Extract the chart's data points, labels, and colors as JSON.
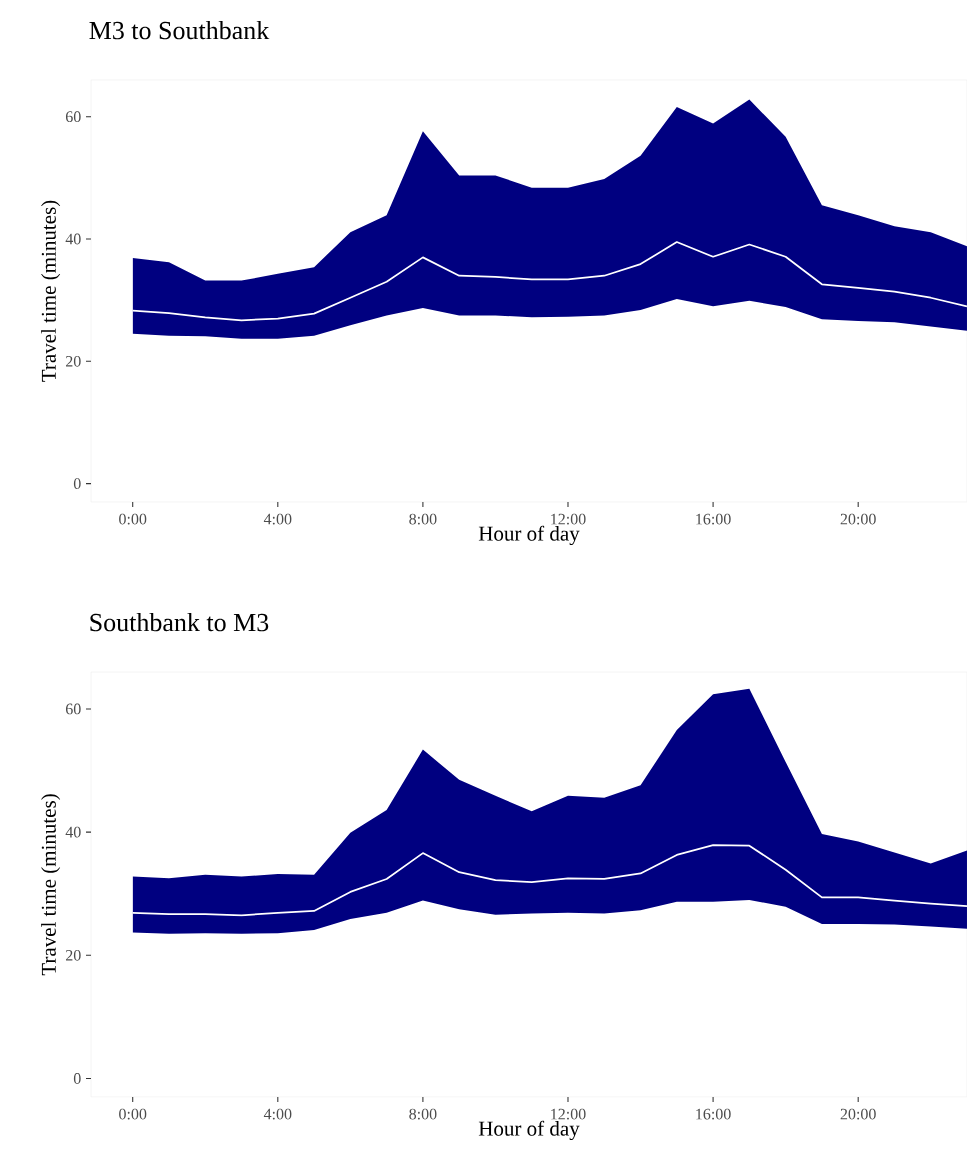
{
  "chart_data": [
    {
      "type": "line",
      "title": "M3 to Southbank",
      "xlabel": "Hour of day",
      "ylabel": "Travel time (minutes)",
      "x": [
        0,
        1,
        2,
        3,
        4,
        5,
        6,
        7,
        8,
        9,
        10,
        11,
        12,
        13,
        14,
        15,
        16,
        17,
        18,
        19,
        20,
        21,
        22,
        23
      ],
      "series": [
        {
          "color": "#ffffff",
          "values": [
            28.3,
            27.9,
            27.2,
            26.7,
            27.0,
            27.8,
            30.4,
            33.0,
            37.0,
            34.0,
            33.8,
            33.4,
            33.4,
            34.0,
            35.9,
            39.5,
            37.1,
            39.1,
            37.1,
            32.6,
            32.0,
            31.4,
            30.4,
            29.0
          ],
          "lower": [
            24.5,
            24.2,
            24.1,
            23.7,
            23.7,
            24.2,
            25.9,
            27.5,
            28.7,
            27.5,
            27.5,
            27.2,
            27.3,
            27.5,
            28.4,
            30.2,
            29.0,
            29.9,
            28.9,
            26.9,
            26.6,
            26.4,
            25.7,
            25.0
          ],
          "upper": [
            36.9,
            36.2,
            33.2,
            33.2,
            34.3,
            35.4,
            41.1,
            43.9,
            57.6,
            50.4,
            50.4,
            48.4,
            48.4,
            49.8,
            53.6,
            61.6,
            58.9,
            62.8,
            56.7,
            45.5,
            43.9,
            42.1,
            41.1,
            38.8
          ]
        }
      ],
      "xlim": [
        -1.15,
        23
      ],
      "xticks": [
        {
          "value": 0,
          "label": "0:00"
        },
        {
          "value": 4,
          "label": "4:00"
        },
        {
          "value": 8,
          "label": "8:00"
        },
        {
          "value": 12,
          "label": "12:00"
        },
        {
          "value": 16,
          "label": "16:00"
        },
        {
          "value": 20,
          "label": "20:00"
        }
      ],
      "ylim": [
        -3,
        66
      ],
      "yticks": [
        0,
        20,
        40,
        60
      ],
      "grid": false
    },
    {
      "type": "line",
      "title": "Southbank to M3",
      "xlabel": "Hour of day",
      "ylabel": "Travel time (minutes)",
      "x": [
        0,
        1,
        2,
        3,
        4,
        5,
        6,
        7,
        8,
        9,
        10,
        11,
        12,
        13,
        14,
        15,
        16,
        17,
        18,
        19,
        20,
        21,
        22,
        23
      ],
      "series": [
        {
          "color": "#ffffff",
          "values": [
            26.9,
            26.7,
            26.7,
            26.5,
            26.9,
            27.2,
            30.3,
            32.4,
            36.6,
            33.5,
            32.2,
            31.9,
            32.5,
            32.4,
            33.3,
            36.3,
            37.9,
            37.8,
            33.9,
            29.4,
            29.4,
            28.9,
            28.4,
            28.0
          ],
          "lower": [
            23.7,
            23.5,
            23.6,
            23.5,
            23.6,
            24.1,
            25.9,
            26.9,
            28.9,
            27.5,
            26.6,
            26.8,
            26.9,
            26.8,
            27.3,
            28.7,
            28.7,
            29.0,
            27.9,
            25.1,
            25.1,
            25.0,
            24.7,
            24.3
          ],
          "upper": [
            32.8,
            32.5,
            33.1,
            32.8,
            33.2,
            33.1,
            39.9,
            43.6,
            53.4,
            48.5,
            45.9,
            43.4,
            45.9,
            45.6,
            47.6,
            56.6,
            62.4,
            63.3,
            51.4,
            39.7,
            38.5,
            36.7,
            34.9,
            37.0
          ]
        }
      ],
      "xlim": [
        -1.15,
        23
      ],
      "xticks": [
        {
          "value": 0,
          "label": "0:00"
        },
        {
          "value": 4,
          "label": "4:00"
        },
        {
          "value": 8,
          "label": "8:00"
        },
        {
          "value": 12,
          "label": "12:00"
        },
        {
          "value": 16,
          "label": "16:00"
        },
        {
          "value": 20,
          "label": "20:00"
        }
      ],
      "ylim": [
        -3,
        66
      ],
      "yticks": [
        0,
        20,
        40,
        60
      ],
      "grid": false
    }
  ]
}
